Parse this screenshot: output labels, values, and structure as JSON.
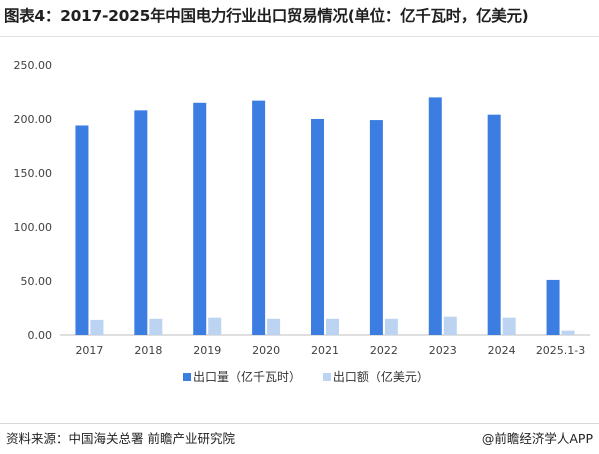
{
  "title": "图表4：2017-2025年中国电力行业出口贸易情况(单位：亿千瓦时，亿美元)",
  "source": "资料来源：中国海关总署 前瞻产业研究院",
  "brand": "@前瞻经济学人APP",
  "colors": {
    "series1": "#3b7de0",
    "series2": "#bcd3f2",
    "axis": "#bfbfbf",
    "tick_text": "#404040"
  },
  "chart_data": {
    "type": "bar",
    "categories": [
      "2017",
      "2018",
      "2019",
      "2020",
      "2021",
      "2022",
      "2023",
      "2024",
      "2025.1-3"
    ],
    "series": [
      {
        "name": "出口量（亿千瓦时）",
        "values": [
          194,
          208,
          215,
          217,
          200,
          199,
          220,
          204,
          51
        ]
      },
      {
        "name": "出口额（亿美元）",
        "values": [
          14,
          15,
          16,
          15,
          15,
          15,
          17,
          16,
          4
        ]
      }
    ],
    "ylim": [
      0,
      250
    ],
    "yticks": [
      "0.00",
      "50.00",
      "100.00",
      "150.00",
      "200.00",
      "250.00"
    ],
    "legend_position": "bottom",
    "grid": false
  }
}
